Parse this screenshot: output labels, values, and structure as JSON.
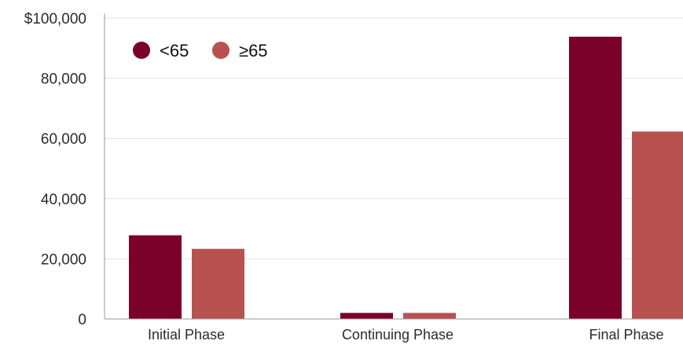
{
  "chart_data": {
    "type": "bar",
    "title": "",
    "xlabel": "",
    "ylabel": "",
    "categories": [
      "Initial Phase",
      "Continuing Phase",
      "Final Phase"
    ],
    "series": [
      {
        "name": "<65",
        "color": "#7a0029",
        "values": [
          27800,
          2000,
          93800
        ]
      },
      {
        "name": "≥65",
        "color": "#b85250",
        "values": [
          23300,
          2000,
          62300
        ]
      }
    ],
    "ylim": [
      0,
      100000
    ],
    "yticks": [
      0,
      20000,
      40000,
      60000,
      80000,
      100000
    ],
    "ytick_labels": [
      "0",
      "20,000",
      "40,000",
      "60,000",
      "80,000",
      "$100,000"
    ],
    "grid": true,
    "legend": {
      "placement": "top-left",
      "marker": "circle"
    }
  }
}
